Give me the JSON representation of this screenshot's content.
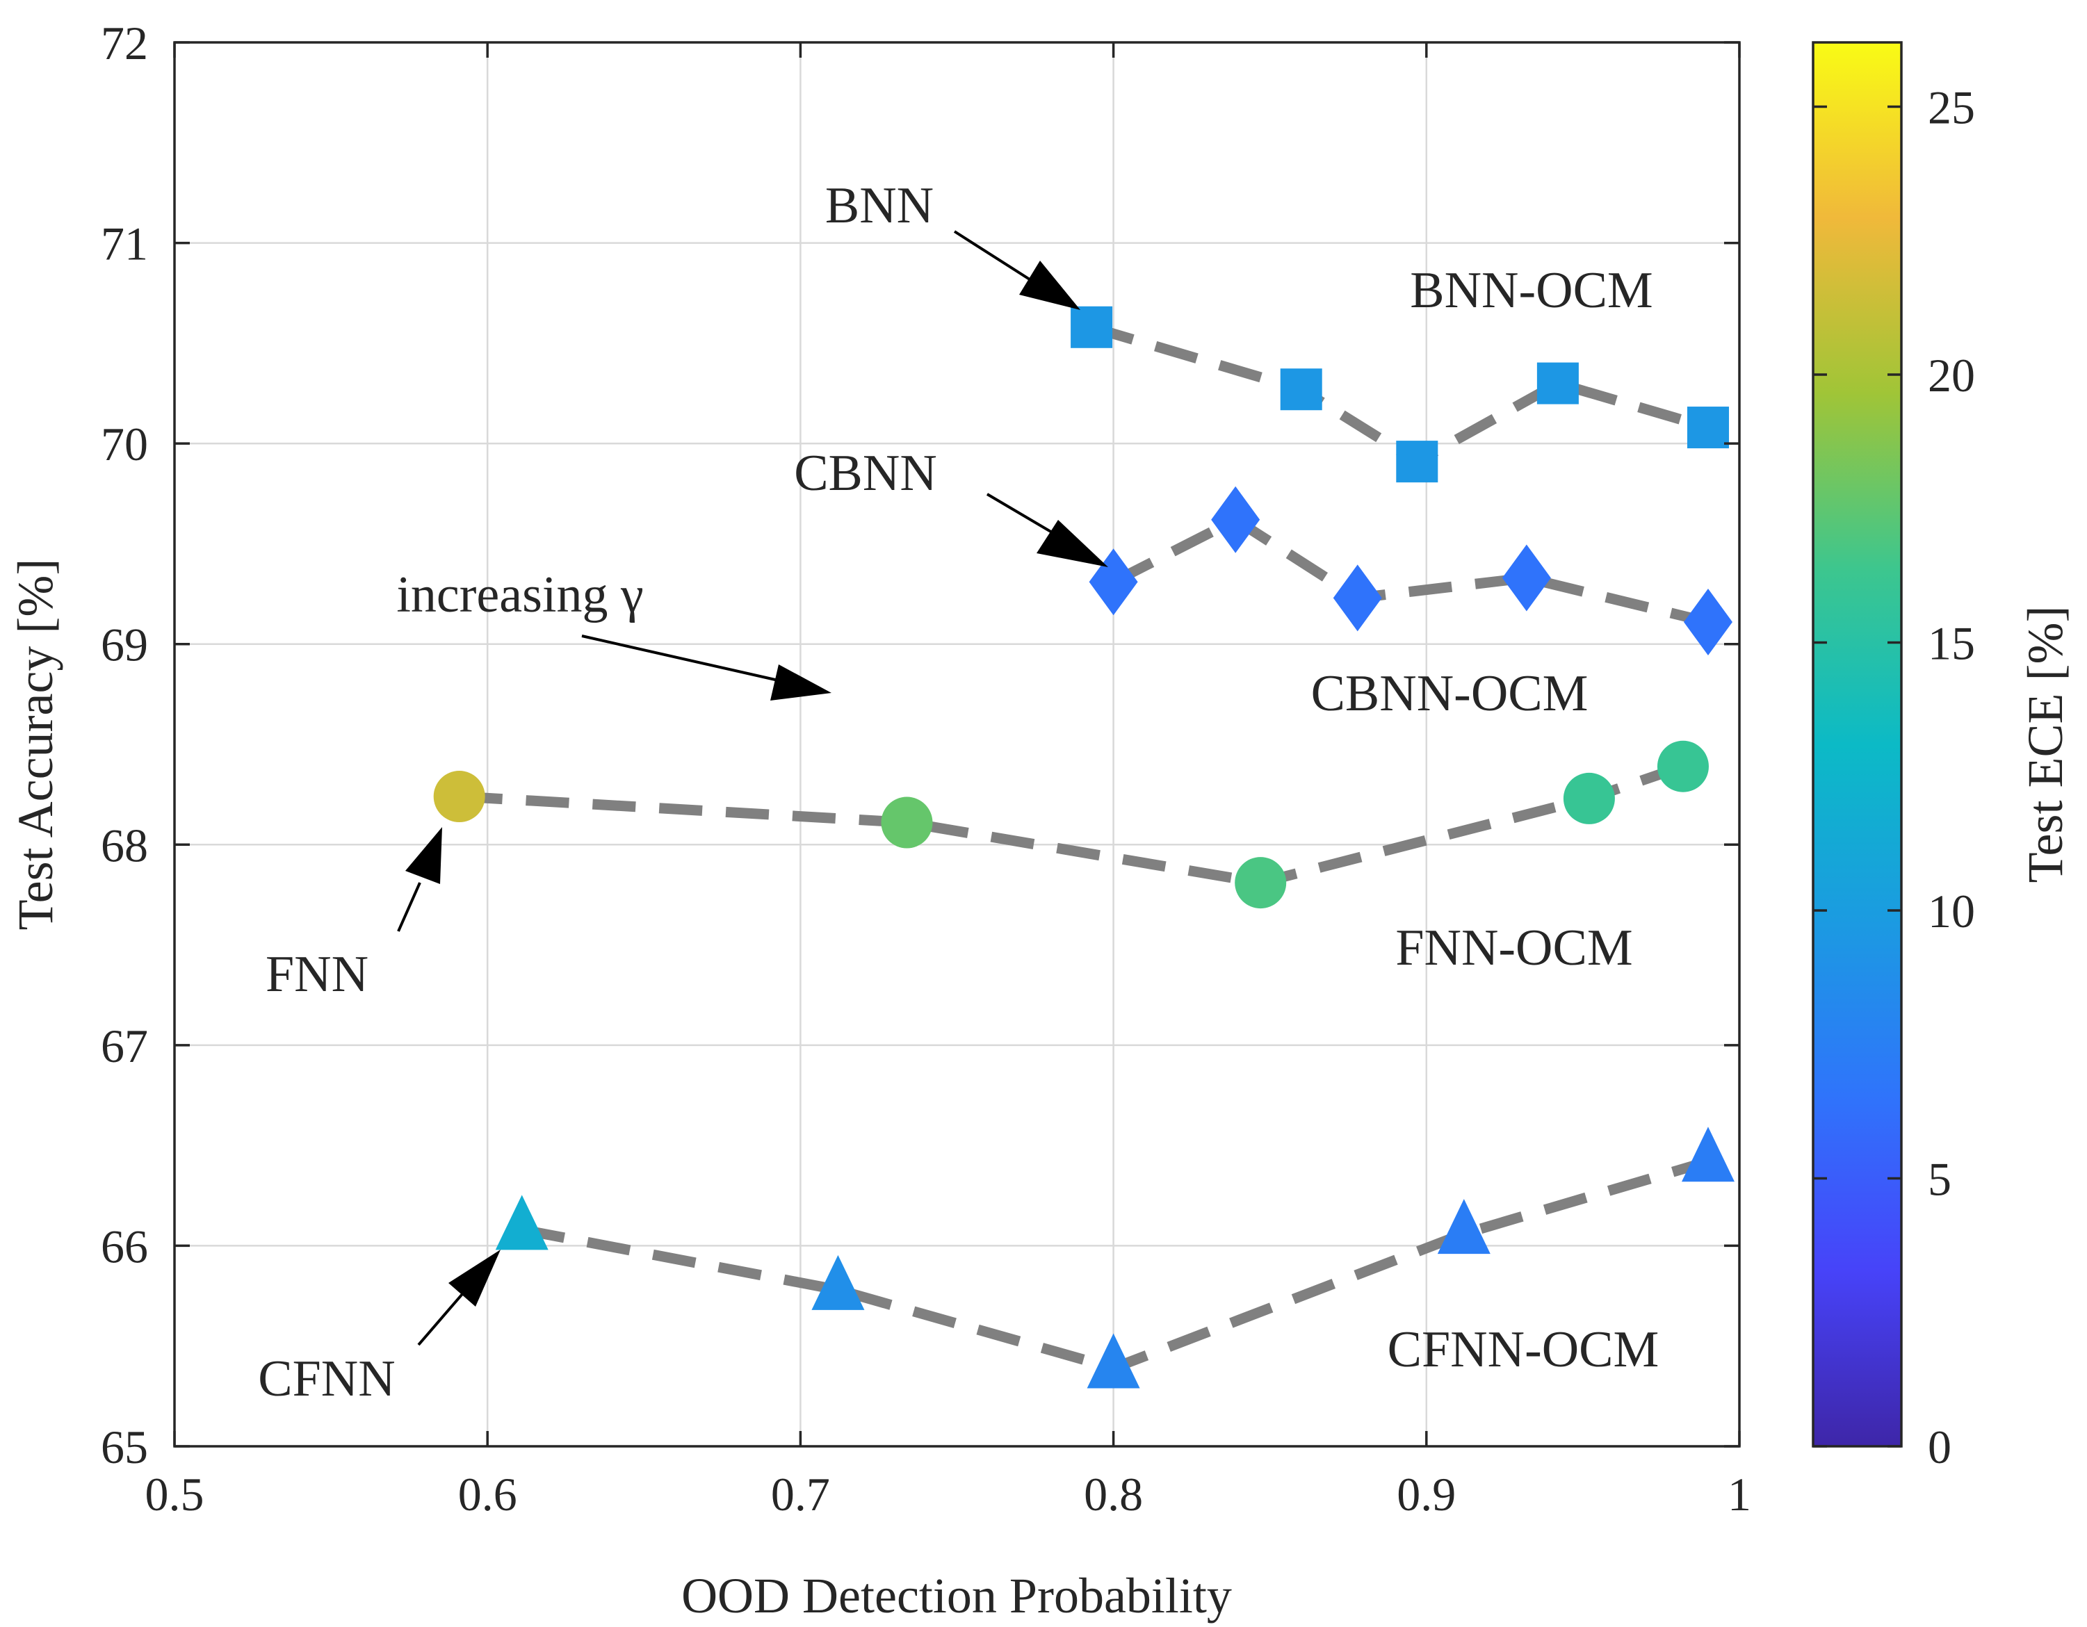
{
  "chart_data": {
    "type": "scatter",
    "xlabel": "OOD Detection Probability",
    "ylabel": "Test Accuracy [%]",
    "xlim": [
      0.5,
      1.0
    ],
    "ylim": [
      65,
      72
    ],
    "xticks": [
      0.5,
      0.6,
      0.7,
      0.8,
      0.9,
      1.0
    ],
    "xtick_labels": [
      "0.5",
      "0.6",
      "0.7",
      "0.8",
      "0.9",
      "1"
    ],
    "yticks": [
      65,
      66,
      67,
      68,
      69,
      70,
      71,
      72
    ],
    "ytick_labels": [
      "65",
      "66",
      "67",
      "68",
      "69",
      "70",
      "71",
      "72"
    ],
    "grid": true,
    "colorbar": {
      "label": "Test ECE [%]",
      "range": [
        0,
        26.2
      ],
      "ticks": [
        0,
        5,
        10,
        15,
        20,
        25
      ],
      "tick_labels": [
        "0",
        "5",
        "10",
        "15",
        "20",
        "25"
      ],
      "colormap": "parula"
    },
    "series": [
      {
        "name": "BNN-OCM",
        "marker": "square",
        "x": [
          0.793,
          0.86,
          0.897,
          0.942,
          0.99
        ],
        "y": [
          70.58,
          70.27,
          69.91,
          70.3,
          70.08
        ],
        "ece": [
          9.5,
          9.5,
          9.5,
          9.5,
          9.5
        ]
      },
      {
        "name": "CBNN-OCM",
        "marker": "diamond",
        "x": [
          0.8,
          0.839,
          0.878,
          0.932,
          0.99
        ],
        "y": [
          69.31,
          69.62,
          69.23,
          69.33,
          69.11
        ],
        "ece": [
          6.5,
          6.5,
          6.5,
          6.5,
          6.5
        ]
      },
      {
        "name": "FNN-OCM",
        "marker": "circle",
        "x": [
          0.591,
          0.734,
          0.847,
          0.952,
          0.982
        ],
        "y": [
          68.24,
          68.11,
          67.81,
          68.23,
          68.39
        ],
        "ece": [
          21.5,
          17.7,
          16.8,
          16.0,
          16.0
        ]
      },
      {
        "name": "CFNN-OCM",
        "marker": "triangle",
        "x": [
          0.611,
          0.712,
          0.8,
          0.912,
          0.99
        ],
        "y": [
          66.08,
          65.78,
          65.39,
          66.06,
          66.42
        ],
        "ece": [
          11.8,
          8.8,
          8.0,
          7.3,
          7.3
        ]
      }
    ],
    "annotations": [
      {
        "text": "BNN",
        "target_series": 0,
        "target_point": 0
      },
      {
        "text": "CBNN",
        "target_series": 1,
        "target_point": 0
      },
      {
        "text": "FNN",
        "target_series": 2,
        "target_point": 0
      },
      {
        "text": "CFNN",
        "target_series": 3,
        "target_point": 0
      },
      {
        "text": "increasing γ",
        "arrow_to": [
          0.725,
          68.76
        ]
      }
    ]
  }
}
